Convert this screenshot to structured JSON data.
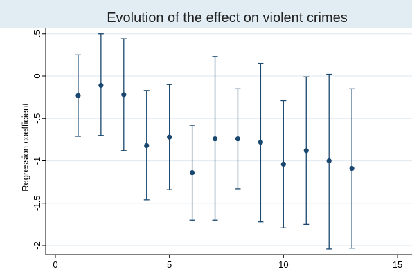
{
  "chart_data": {
    "type": "scatter",
    "title": "Evolution of the effect on violent crimes",
    "xlabel": "",
    "ylabel": "Regression coefficient",
    "xlim": [
      -0.2,
      15.3
    ],
    "ylim": [
      -2.1,
      0.57
    ],
    "x_ticks": [
      0,
      5,
      10,
      15
    ],
    "x_tick_labels": [
      "0",
      "5",
      "10",
      "15"
    ],
    "y_ticks": [
      0.5,
      0,
      -0.5,
      -1,
      -1.5,
      -2
    ],
    "y_tick_labels": [
      ".5",
      "0",
      "-.5",
      "-1",
      "-1.5",
      "-2"
    ],
    "grid": "horizontal",
    "legend": "none",
    "series": [
      {
        "points": [
          {
            "x": 1,
            "y": -0.23,
            "lower": -0.71,
            "upper": 0.25
          },
          {
            "x": 2,
            "y": -0.11,
            "lower": -0.7,
            "upper": 0.5
          },
          {
            "x": 3,
            "y": -0.22,
            "lower": -0.88,
            "upper": 0.44
          },
          {
            "x": 4,
            "y": -0.82,
            "lower": -1.46,
            "upper": -0.17
          },
          {
            "x": 5,
            "y": -0.72,
            "lower": -1.34,
            "upper": -0.1
          },
          {
            "x": 6,
            "y": -1.14,
            "lower": -1.7,
            "upper": -0.58
          },
          {
            "x": 7,
            "y": -0.74,
            "lower": -1.7,
            "upper": 0.23
          },
          {
            "x": 8,
            "y": -0.74,
            "lower": -1.33,
            "upper": -0.15
          },
          {
            "x": 9,
            "y": -0.78,
            "lower": -1.72,
            "upper": 0.15
          },
          {
            "x": 10,
            "y": -1.04,
            "lower": -1.79,
            "upper": -0.29
          },
          {
            "x": 11,
            "y": -0.88,
            "lower": -1.75,
            "upper": -0.01
          },
          {
            "x": 12,
            "y": -1.0,
            "lower": -2.04,
            "upper": 0.02
          },
          {
            "x": 13,
            "y": -1.09,
            "lower": -2.03,
            "upper": -0.15
          }
        ]
      }
    ],
    "colors": {
      "figure_background": "#ffffff",
      "title_band": "#e2ecf3",
      "plot_background": "#ffffff",
      "grid": "#e4ecf2",
      "axis": "#000000",
      "marker": "#1a476f",
      "error_bar": "#1a476f",
      "title_text": "#222222",
      "label_text": "#000000"
    }
  }
}
